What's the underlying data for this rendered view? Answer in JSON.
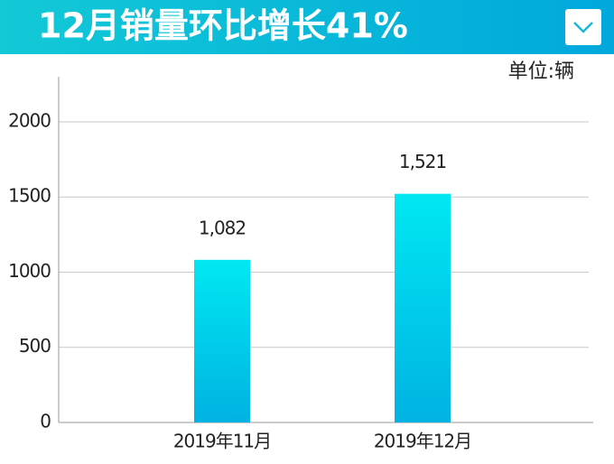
{
  "chart_data": {
    "type": "bar",
    "title": "12月销量环比增长41%",
    "unit_label": "单位:辆",
    "categories": [
      "2019年11月",
      "2019年12月"
    ],
    "values": [
      1082,
      1521
    ],
    "value_labels": [
      "1,082",
      "1,521"
    ],
    "ylim": [
      0,
      2300
    ],
    "yticks": [
      0,
      500,
      1000,
      1500,
      2000
    ],
    "grid": true,
    "color_top": "#00e8f2",
    "color_bottom": "#00b2e2"
  }
}
